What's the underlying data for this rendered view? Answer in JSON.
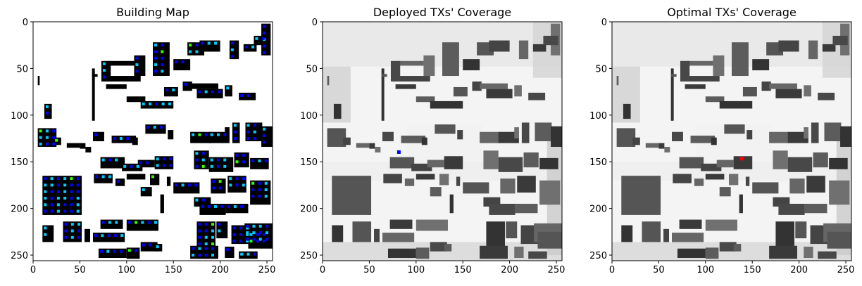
{
  "chart_data": [
    {
      "type": "heatmap",
      "title": "Building Map",
      "xlim": [
        0,
        256
      ],
      "ylim": [
        256,
        0
      ],
      "xticks": [
        0,
        50,
        100,
        150,
        200,
        250
      ],
      "yticks": [
        0,
        50,
        100,
        150,
        200,
        250
      ],
      "background": "#ffffff",
      "building_color": "#000000",
      "legend": "none",
      "grid": false,
      "candidate_marker_colors": [
        "#0000ff",
        "#00ccff",
        "#33ff00"
      ]
    },
    {
      "type": "heatmap",
      "title": "Deployed TXs' Coverage",
      "xlim": [
        0,
        256
      ],
      "ylim": [
        256,
        0
      ],
      "xticks": [
        0,
        50,
        100,
        150,
        200,
        250
      ],
      "yticks": [
        0,
        50,
        100,
        150,
        200,
        250
      ],
      "colormap": "gray",
      "grid": false,
      "tx_marker": {
        "x": 82,
        "y": 140,
        "color": "#0000ff"
      }
    },
    {
      "type": "heatmap",
      "title": "Optimal TXs' Coverage",
      "xlim": [
        0,
        256
      ],
      "ylim": [
        256,
        0
      ],
      "xticks": [
        0,
        50,
        100,
        150,
        200,
        250
      ],
      "yticks": [
        0,
        50,
        100,
        150,
        200,
        250
      ],
      "colormap": "gray",
      "grid": false,
      "tx_marker": {
        "x": 139,
        "y": 147,
        "color": "#ff0000"
      }
    }
  ]
}
